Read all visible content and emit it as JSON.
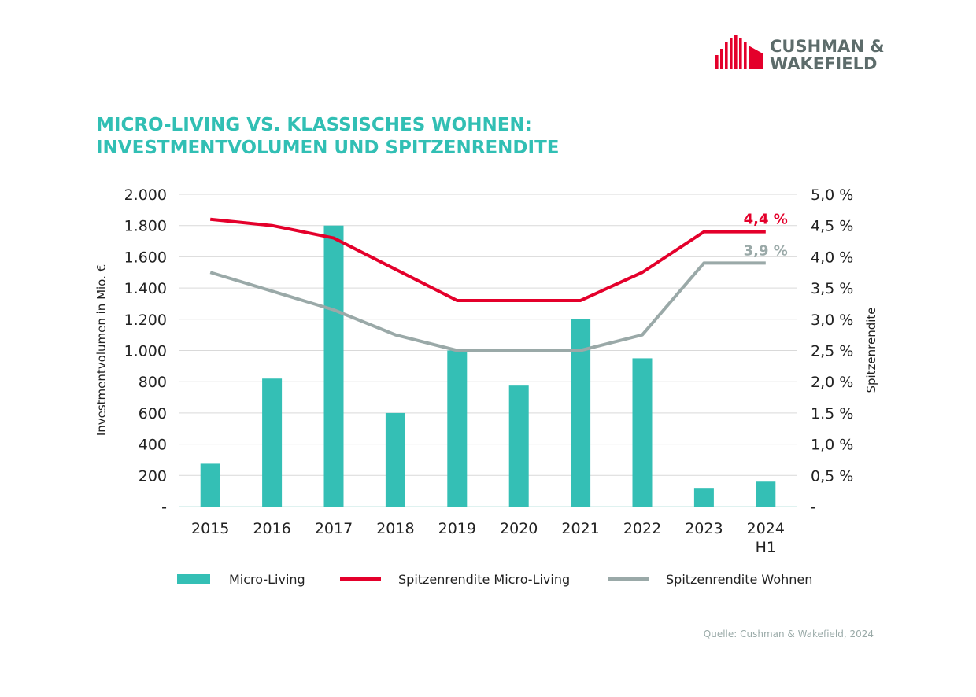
{
  "brand": {
    "line1": "CUSHMAN &",
    "line2": "WAKEFIELD",
    "logo_color": "#e4002b",
    "text_color": "#5d6c6b"
  },
  "title": {
    "line1": "MICRO-LIVING VS. KLASSISCHES WOHNEN:",
    "line2": "INVESTMENTVOLUMEN UND SPITZENRENDITE",
    "color": "#31bfb4"
  },
  "source": "Quelle: Cushman & Wakefield, 2024",
  "chart_data": {
    "type": "bar",
    "categories": [
      [
        "2015"
      ],
      [
        "2016"
      ],
      [
        "2017"
      ],
      [
        "2018"
      ],
      [
        "2019"
      ],
      [
        "2020"
      ],
      [
        "2021"
      ],
      [
        "2022"
      ],
      [
        "2023"
      ],
      [
        "2024",
        "H1"
      ]
    ],
    "series": [
      {
        "name": "Micro-Living",
        "type": "bar",
        "axis": "left",
        "color": "#34bfb5",
        "values": [
          275,
          820,
          1800,
          600,
          1000,
          775,
          1200,
          950,
          120,
          160
        ]
      },
      {
        "name": "Spitzenrendite Micro-Living",
        "type": "line",
        "axis": "right",
        "color": "#e4002b",
        "values": [
          4.6,
          4.5,
          4.3,
          3.8,
          3.3,
          3.3,
          3.3,
          3.75,
          4.4,
          4.4
        ]
      },
      {
        "name": "Spitzenrendite Wohnen",
        "type": "line",
        "axis": "right",
        "color": "#9aa9a8",
        "values": [
          3.75,
          3.45,
          3.15,
          2.75,
          2.5,
          2.5,
          2.5,
          2.75,
          3.9,
          3.9
        ]
      }
    ],
    "end_labels": [
      {
        "series": "Spitzenrendite Micro-Living",
        "text": "4,4 %",
        "color": "#e4002b"
      },
      {
        "series": "Spitzenrendite Wohnen",
        "text": "3,9 %",
        "color": "#9aa9a8"
      }
    ],
    "ylabel": "Investmentvolumen in Mio. €",
    "y2label": "Spitzenrendite",
    "ylim": [
      0,
      2000
    ],
    "y2lim": [
      0,
      5.0
    ],
    "yticks": [
      "-",
      "200",
      "400",
      "600",
      "800",
      "1.000",
      "1.200",
      "1.400",
      "1.600",
      "1.800",
      "2.000"
    ],
    "y2ticks": [
      "-",
      "0,5 %",
      "1,0 %",
      "1.5 %",
      "2,0 %",
      "2,5 %",
      "3,0 %",
      "3,5 %",
      "4,0 %",
      "4,5 %",
      "5,0 %"
    ],
    "grid": true,
    "legend_position": "bottom"
  }
}
